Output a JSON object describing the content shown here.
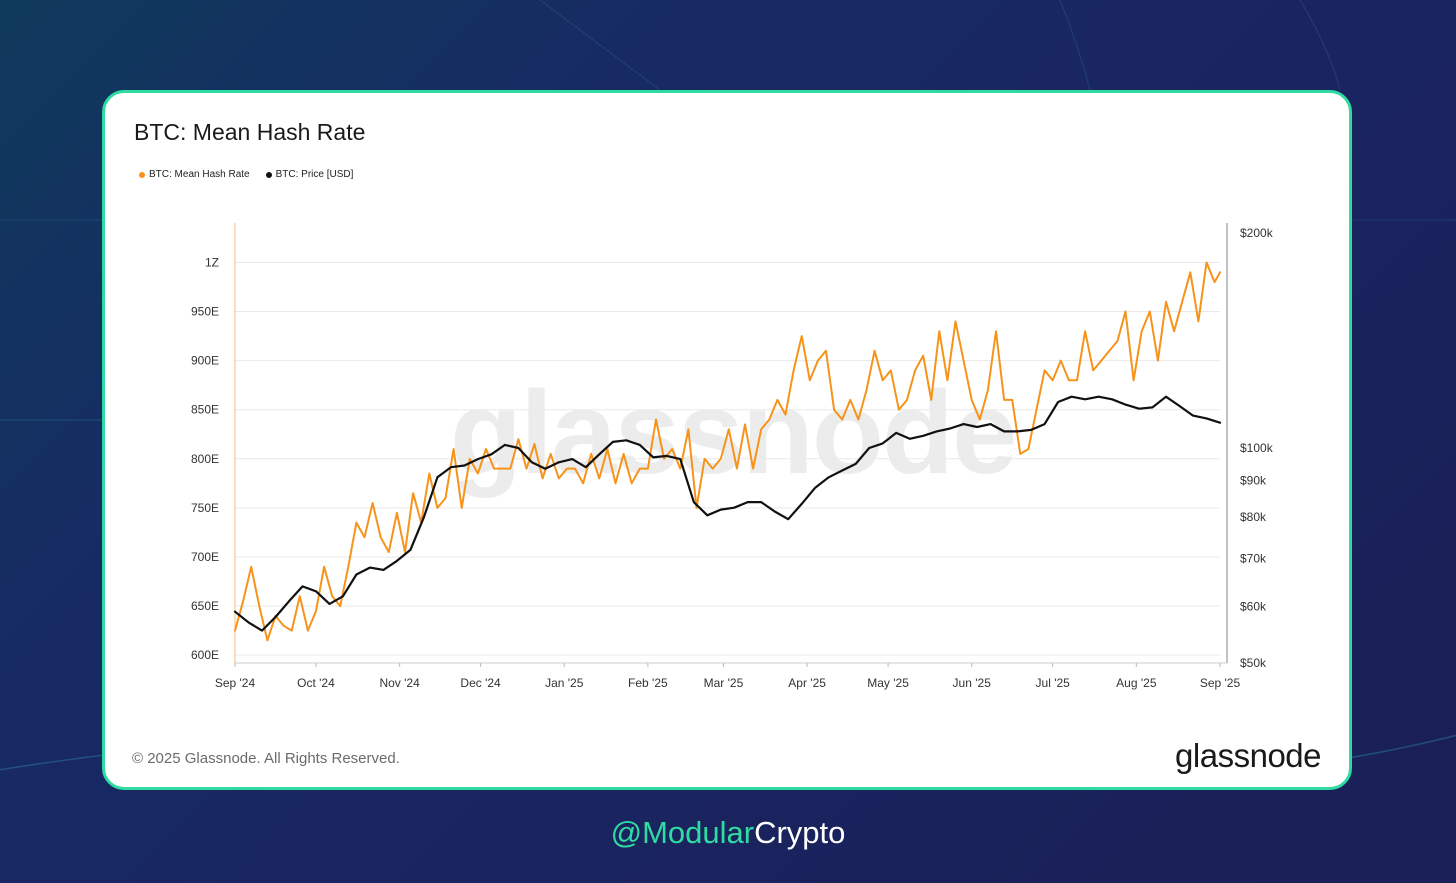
{
  "colors": {
    "hash_rate": "#f7931a",
    "price": "#111111",
    "card_border": "#2fdba0",
    "handle_accent": "#2fdba0"
  },
  "watermark": "glassnode",
  "footer": {
    "copyright": "© 2025 Glassnode. All Rights Reserved.",
    "brand": "glassnode"
  },
  "handle": {
    "accent": "@Modular",
    "rest": "Crypto"
  },
  "chart_data": {
    "type": "line",
    "title": "BTC: Mean Hash Rate",
    "legend": [
      "BTC: Mean Hash Rate",
      "BTC: Price [USD]"
    ],
    "legend_placement": "top-left",
    "grid": true,
    "x_ticks": [
      "Sep '24",
      "Oct '24",
      "Nov '24",
      "Dec '24",
      "Jan '25",
      "Feb '25",
      "Mar '25",
      "Apr '25",
      "May '25",
      "Jun '25",
      "Jul '25",
      "Aug '25",
      "Sep '25"
    ],
    "left_axis": {
      "ticks": [
        "600E",
        "650E",
        "700E",
        "750E",
        "800E",
        "850E",
        "900E",
        "950E",
        "1Z"
      ],
      "tick_values": [
        600,
        650,
        700,
        750,
        800,
        850,
        900,
        950,
        1000
      ],
      "unit": "EH/s",
      "range": [
        592,
        1030
      ]
    },
    "right_axis": {
      "scale": "log",
      "ticks": [
        "$50k",
        "$60k",
        "$70k",
        "$80k",
        "$90k",
        "$100k",
        "$200k"
      ],
      "tick_values": [
        50000,
        60000,
        70000,
        80000,
        90000,
        100000,
        200000
      ],
      "range": [
        50000,
        200000
      ]
    },
    "series": [
      {
        "name": "BTC: Mean Hash Rate",
        "axis": "left",
        "x": [
          "2024-09-01",
          "2024-09-04",
          "2024-09-07",
          "2024-09-10",
          "2024-09-13",
          "2024-09-16",
          "2024-09-19",
          "2024-09-22",
          "2024-09-25",
          "2024-09-28",
          "2024-10-01",
          "2024-10-04",
          "2024-10-07",
          "2024-10-10",
          "2024-10-13",
          "2024-10-16",
          "2024-10-19",
          "2024-10-22",
          "2024-10-25",
          "2024-10-28",
          "2024-10-31",
          "2024-11-03",
          "2024-11-06",
          "2024-11-09",
          "2024-11-12",
          "2024-11-15",
          "2024-11-18",
          "2024-11-21",
          "2024-11-24",
          "2024-11-27",
          "2024-11-30",
          "2024-12-03",
          "2024-12-06",
          "2024-12-09",
          "2024-12-12",
          "2024-12-15",
          "2024-12-18",
          "2024-12-21",
          "2024-12-24",
          "2024-12-27",
          "2024-12-30",
          "2025-01-02",
          "2025-01-05",
          "2025-01-08",
          "2025-01-11",
          "2025-01-14",
          "2025-01-17",
          "2025-01-20",
          "2025-01-23",
          "2025-01-26",
          "2025-01-29",
          "2025-02-01",
          "2025-02-04",
          "2025-02-07",
          "2025-02-10",
          "2025-02-13",
          "2025-02-16",
          "2025-02-19",
          "2025-02-22",
          "2025-02-25",
          "2025-02-28",
          "2025-03-03",
          "2025-03-06",
          "2025-03-09",
          "2025-03-12",
          "2025-03-15",
          "2025-03-18",
          "2025-03-21",
          "2025-03-24",
          "2025-03-27",
          "2025-03-30",
          "2025-04-02",
          "2025-04-05",
          "2025-04-08",
          "2025-04-11",
          "2025-04-14",
          "2025-04-17",
          "2025-04-20",
          "2025-04-23",
          "2025-04-26",
          "2025-04-29",
          "2025-05-02",
          "2025-05-05",
          "2025-05-08",
          "2025-05-11",
          "2025-05-14",
          "2025-05-17",
          "2025-05-20",
          "2025-05-23",
          "2025-05-26",
          "2025-05-29",
          "2025-06-01",
          "2025-06-04",
          "2025-06-07",
          "2025-06-10",
          "2025-06-13",
          "2025-06-16",
          "2025-06-19",
          "2025-06-22",
          "2025-06-25",
          "2025-06-28",
          "2025-07-01",
          "2025-07-04",
          "2025-07-07",
          "2025-07-10",
          "2025-07-13",
          "2025-07-16",
          "2025-07-19",
          "2025-07-22",
          "2025-07-25",
          "2025-07-28",
          "2025-07-31",
          "2025-08-03",
          "2025-08-06",
          "2025-08-09",
          "2025-08-12",
          "2025-08-15",
          "2025-08-18",
          "2025-08-21",
          "2025-08-24",
          "2025-08-27",
          "2025-08-30",
          "2025-09-01"
        ],
        "values": [
          625,
          655,
          690,
          650,
          615,
          640,
          630,
          625,
          660,
          625,
          645,
          690,
          660,
          650,
          690,
          735,
          720,
          755,
          720,
          705,
          745,
          705,
          765,
          735,
          785,
          750,
          760,
          810,
          750,
          800,
          785,
          810,
          790,
          790,
          790,
          820,
          790,
          815,
          780,
          805,
          780,
          790,
          790,
          775,
          805,
          780,
          810,
          775,
          805,
          775,
          790,
          790,
          840,
          800,
          810,
          790,
          830,
          750,
          800,
          790,
          800,
          830,
          790,
          835,
          790,
          830,
          840,
          860,
          845,
          890,
          925,
          880,
          900,
          910,
          850,
          840,
          860,
          840,
          870,
          910,
          880,
          890,
          850,
          860,
          890,
          905,
          860,
          930,
          880,
          940,
          900,
          860,
          840,
          870,
          930,
          860,
          860,
          805,
          810,
          850,
          890,
          880,
          900,
          880,
          880,
          930,
          890,
          900,
          910,
          920,
          950,
          880,
          930,
          950,
          900,
          960,
          930,
          960,
          990,
          940,
          1000,
          980,
          990
        ]
      },
      {
        "name": "BTC: Price [USD]",
        "axis": "right",
        "x": [
          "2024-09-01",
          "2024-09-06",
          "2024-09-11",
          "2024-09-16",
          "2024-09-21",
          "2024-09-26",
          "2024-10-01",
          "2024-10-06",
          "2024-10-11",
          "2024-10-16",
          "2024-10-21",
          "2024-10-26",
          "2024-10-31",
          "2024-11-05",
          "2024-11-10",
          "2024-11-15",
          "2024-11-20",
          "2024-11-25",
          "2024-11-30",
          "2024-12-05",
          "2024-12-10",
          "2024-12-15",
          "2024-12-20",
          "2024-12-25",
          "2024-12-30",
          "2025-01-04",
          "2025-01-09",
          "2025-01-14",
          "2025-01-19",
          "2025-01-24",
          "2025-01-29",
          "2025-02-03",
          "2025-02-08",
          "2025-02-13",
          "2025-02-18",
          "2025-02-23",
          "2025-02-28",
          "2025-03-05",
          "2025-03-10",
          "2025-03-15",
          "2025-03-20",
          "2025-03-25",
          "2025-03-30",
          "2025-04-04",
          "2025-04-09",
          "2025-04-14",
          "2025-04-19",
          "2025-04-24",
          "2025-04-29",
          "2025-05-04",
          "2025-05-09",
          "2025-05-14",
          "2025-05-19",
          "2025-05-24",
          "2025-05-29",
          "2025-06-03",
          "2025-06-08",
          "2025-06-13",
          "2025-06-18",
          "2025-06-23",
          "2025-06-28",
          "2025-07-03",
          "2025-07-08",
          "2025-07-13",
          "2025-07-18",
          "2025-07-23",
          "2025-07-28",
          "2025-08-02",
          "2025-08-07",
          "2025-08-12",
          "2025-08-17",
          "2025-08-22",
          "2025-08-27",
          "2025-09-01"
        ],
        "values": [
          59000,
          57000,
          55500,
          58000,
          61000,
          64000,
          63000,
          60500,
          62000,
          66500,
          68000,
          67500,
          69500,
          72000,
          80000,
          91000,
          94000,
          94500,
          96500,
          98000,
          101000,
          100000,
          95500,
          93500,
          95500,
          96500,
          94000,
          98000,
          102000,
          102500,
          101000,
          97000,
          97500,
          96500,
          84000,
          80500,
          82000,
          82500,
          84000,
          84000,
          81500,
          79500,
          83500,
          88000,
          91000,
          93000,
          95000,
          100000,
          101500,
          105000,
          103000,
          104000,
          105500,
          106500,
          108000,
          107000,
          108000,
          105500,
          105500,
          106000,
          108000,
          116000,
          118000,
          117000,
          118000,
          117000,
          115000,
          113500,
          114000,
          118000,
          114500,
          111000,
          110000,
          108500
        ]
      }
    ]
  }
}
